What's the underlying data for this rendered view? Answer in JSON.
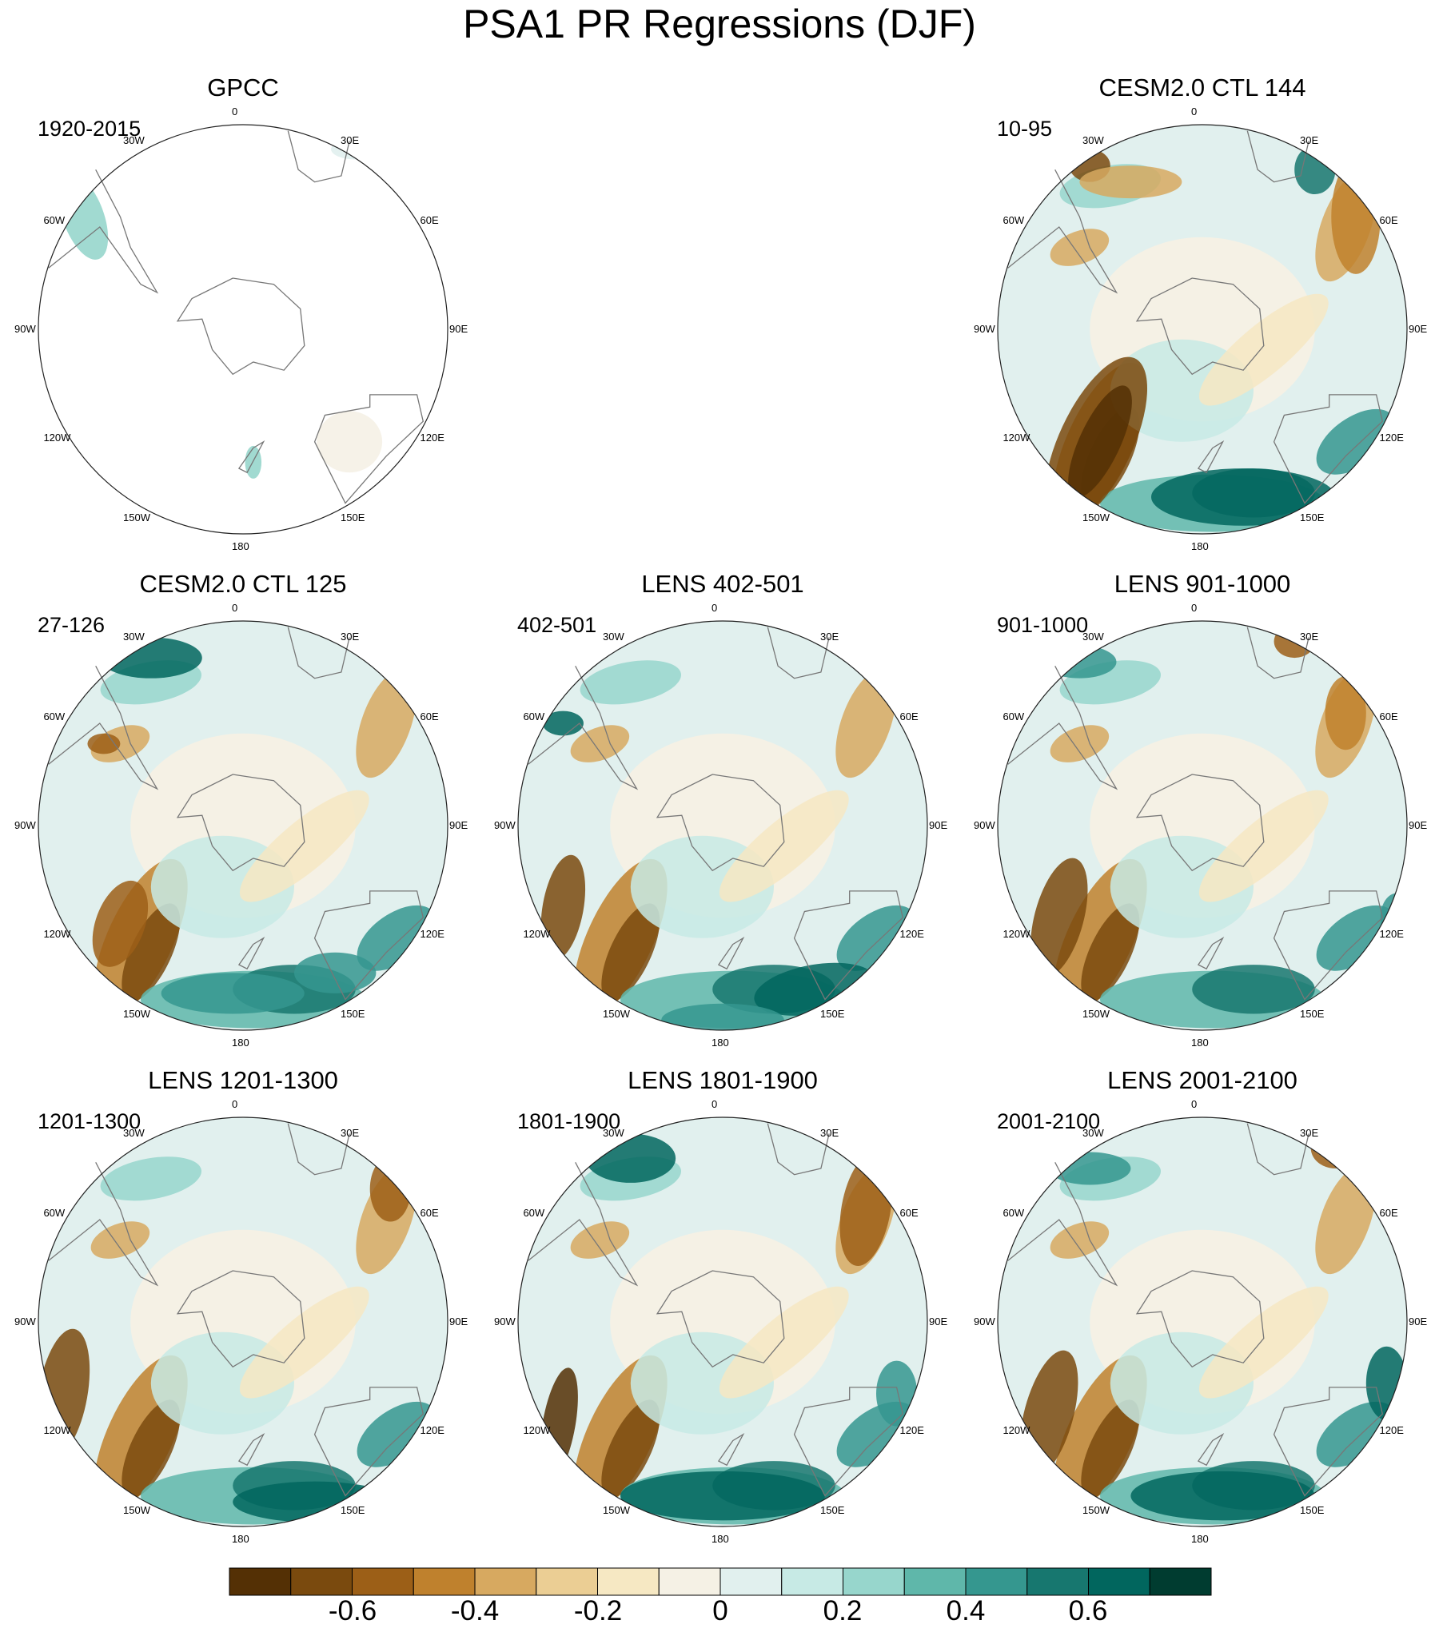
{
  "title": "PSA1 PR Regressions (DJF)",
  "panels": [
    {
      "id": "gpcc",
      "title": "GPCC",
      "period": "1920-2015",
      "obs": true
    },
    {
      "id": "ctl144",
      "title": "CESM2.0 CTL 144",
      "period": "10-95",
      "obs": false
    },
    {
      "id": "ctl125",
      "title": "CESM2.0 CTL 125",
      "period": "27-126",
      "obs": false
    },
    {
      "id": "lens402",
      "title": "LENS 402-501",
      "period": "402-501",
      "obs": false
    },
    {
      "id": "lens901",
      "title": "LENS 901-1000",
      "period": "901-1000",
      "obs": false
    },
    {
      "id": "lens1201",
      "title": "LENS 1201-1300",
      "period": "1201-1300",
      "obs": false
    },
    {
      "id": "lens1801",
      "title": "LENS 1801-1900",
      "period": "1801-1900",
      "obs": false
    },
    {
      "id": "lens2001",
      "title": "LENS 2001-2100",
      "period": "2001-2100",
      "obs": false
    }
  ],
  "longitude_labels": [
    "0",
    "30E",
    "60E",
    "90E",
    "120E",
    "150E",
    "180",
    "150W",
    "120W",
    "90W",
    "60W",
    "30W"
  ],
  "colorbar": {
    "tick_labels": [
      "-0.6",
      "-0.4",
      "-0.2",
      "0",
      "0.2",
      "0.4",
      "0.6"
    ],
    "colors": [
      "#543005",
      "#7a4a0e",
      "#9c5f17",
      "#bf812d",
      "#d7a960",
      "#ebce94",
      "#f6e8c3",
      "#f5f1e5",
      "#e1f0ee",
      "#c7eae5",
      "#97d6cc",
      "#5fb7aa",
      "#35978f",
      "#17776f",
      "#01665e",
      "#003c30"
    ]
  }
}
